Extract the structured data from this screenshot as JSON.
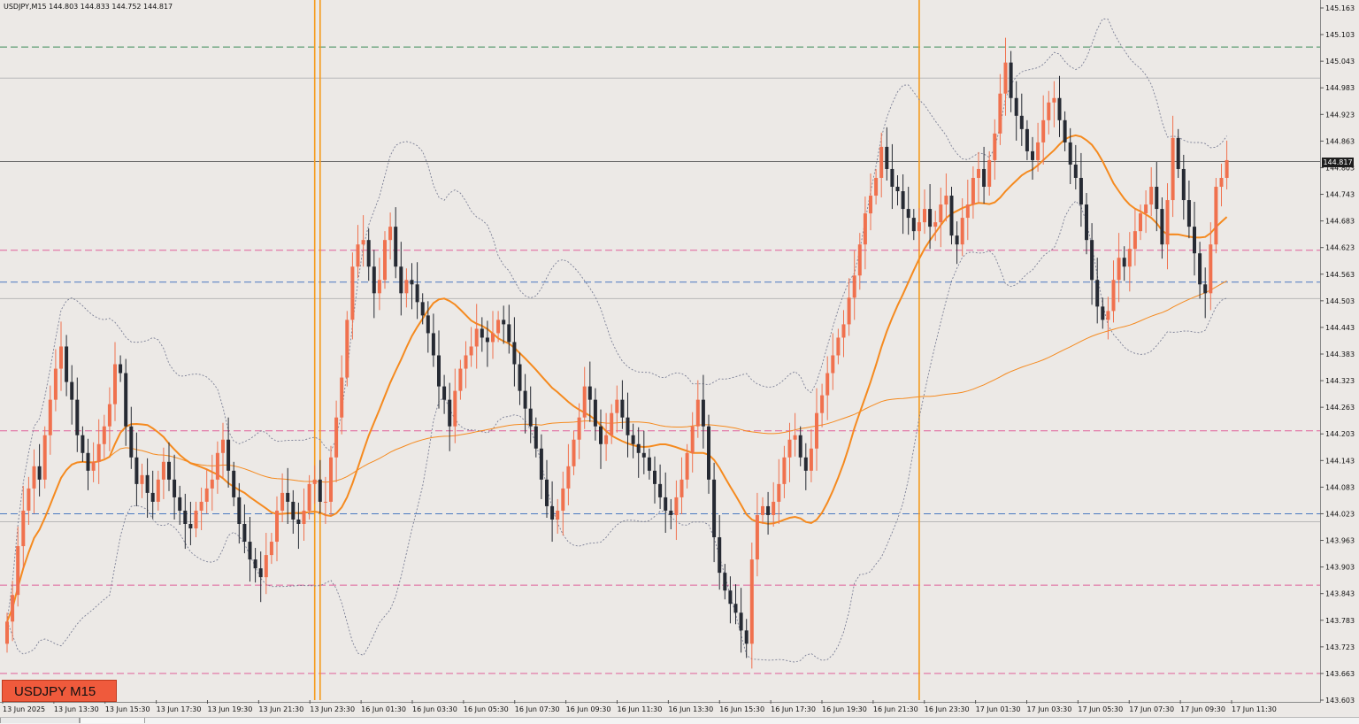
{
  "header": {
    "symbol": "USDJPY,M15",
    "ohlc": "144.803 144.833 144.752 144.817"
  },
  "badge": {
    "label": "USDJPY M15"
  },
  "current_price_label": "144.817",
  "colors": {
    "background": "#ece9e6",
    "bull": "#f0714e",
    "bear": "#262a33",
    "ma_fast": "#f58a1f",
    "ma_slow": "#f58a1f",
    "bands": "#7b7f95",
    "vline": "#f59a1b",
    "level_green": "#3c8a58",
    "level_pink": "#e0609a",
    "level_blue": "#4a79c0",
    "level_grey": "#b8b8b8"
  },
  "chart_data": {
    "type": "candlestick",
    "title": "USDJPY,M15",
    "ylim": [
      143.603,
      145.163
    ],
    "y_ticks": [
      "145.163",
      "145.103",
      "145.043",
      "144.983",
      "144.923",
      "144.863",
      "144.803",
      "144.743",
      "144.683",
      "144.623",
      "144.563",
      "144.503",
      "144.443",
      "144.383",
      "144.323",
      "144.263",
      "144.203",
      "144.143",
      "144.083",
      "144.023",
      "143.963",
      "143.903",
      "143.843",
      "143.783",
      "143.723",
      "143.663",
      "143.603"
    ],
    "x_labels": [
      "13 Jun 2025",
      "13 Jun 13:30",
      "13 Jun 15:30",
      "13 Jun 17:30",
      "13 Jun 19:30",
      "13 Jun 21:30",
      "13 Jun 23:30",
      "16 Jun 01:30",
      "16 Jun 03:30",
      "16 Jun 05:30",
      "16 Jun 07:30",
      "16 Jun 09:30",
      "16 Jun 11:30",
      "16 Jun 13:30",
      "16 Jun 15:30",
      "16 Jun 17:30",
      "16 Jun 19:30",
      "16 Jun 21:30",
      "16 Jun 23:30",
      "17 Jun 01:30",
      "17 Jun 03:30",
      "17 Jun 05:30",
      "17 Jun 07:30",
      "17 Jun 09:30",
      "17 Jun 11:30"
    ],
    "horizontal_levels": [
      {
        "price": 145.075,
        "style": "dashed",
        "color": "green"
      },
      {
        "price": 145.005,
        "style": "solid",
        "color": "grey"
      },
      {
        "price": 144.817,
        "style": "solid",
        "color": "dark"
      },
      {
        "price": 144.617,
        "style": "dashed",
        "color": "pink"
      },
      {
        "price": 144.545,
        "style": "dashed",
        "color": "blue"
      },
      {
        "price": 144.508,
        "style": "solid",
        "color": "grey"
      },
      {
        "price": 144.21,
        "style": "dashed",
        "color": "pink"
      },
      {
        "price": 144.023,
        "style": "dashed",
        "color": "blue"
      },
      {
        "price": 144.005,
        "style": "solid",
        "color": "grey"
      },
      {
        "price": 143.862,
        "style": "dashed",
        "color": "pink"
      },
      {
        "price": 143.663,
        "style": "dashed",
        "color": "pink"
      }
    ],
    "vertical_markers_bar_index": [
      57,
      58,
      169
    ],
    "candles_close": [
      143.78,
      143.84,
      143.95,
      144.03,
      144.08,
      144.13,
      144.1,
      144.2,
      144.28,
      144.35,
      144.4,
      144.32,
      144.28,
      144.2,
      144.16,
      144.12,
      144.14,
      144.18,
      144.22,
      144.27,
      144.36,
      144.34,
      144.22,
      144.15,
      144.09,
      144.11,
      144.07,
      144.05,
      144.1,
      144.14,
      144.1,
      144.06,
      144.03,
      144.0,
      143.99,
      144.03,
      144.05,
      144.08,
      144.1,
      144.16,
      144.19,
      144.12,
      144.06,
      144.0,
      143.96,
      143.92,
      143.9,
      143.88,
      143.93,
      143.96,
      144.03,
      144.07,
      144.05,
      144.01,
      144.0,
      144.03,
      144.09,
      144.1,
      144.05,
      144.05,
      144.15,
      144.24,
      144.33,
      144.46,
      144.58,
      144.63,
      144.64,
      144.58,
      144.52,
      144.55,
      144.64,
      144.67,
      144.58,
      144.52,
      144.55,
      144.54,
      144.5,
      144.47,
      144.43,
      144.38,
      144.31,
      144.28,
      144.22,
      144.3,
      144.35,
      144.38,
      144.4,
      144.44,
      144.42,
      144.41,
      144.43,
      144.46,
      144.45,
      144.41,
      144.36,
      144.3,
      144.26,
      144.22,
      144.17,
      144.1,
      144.04,
      144.01,
      144.03,
      144.08,
      144.13,
      144.19,
      144.24,
      144.31,
      144.28,
      144.22,
      144.18,
      144.2,
      144.25,
      144.28,
      144.24,
      144.2,
      144.18,
      144.16,
      144.15,
      144.12,
      144.09,
      144.06,
      144.03,
      144.02,
      144.06,
      144.1,
      144.16,
      144.22,
      144.28,
      144.22,
      144.1,
      143.97,
      143.89,
      143.85,
      143.82,
      143.8,
      143.76,
      143.73,
      143.92,
      144.02,
      144.04,
      144.02,
      144.05,
      144.09,
      144.15,
      144.19,
      144.2,
      144.15,
      144.12,
      144.17,
      144.25,
      144.29,
      144.34,
      144.38,
      144.42,
      144.45,
      144.51,
      144.56,
      144.63,
      144.7,
      144.74,
      144.78,
      144.85,
      144.8,
      144.76,
      144.75,
      144.71,
      144.69,
      144.66,
      144.68,
      144.71,
      144.67,
      144.68,
      144.72,
      144.74,
      144.65,
      144.63,
      144.69,
      144.72,
      144.78,
      144.8,
      144.76,
      144.82,
      144.88,
      144.97,
      145.04,
      144.96,
      144.92,
      144.89,
      144.84,
      144.82,
      144.86,
      144.91,
      144.95,
      144.96,
      144.91,
      144.86,
      144.81,
      144.78,
      144.72,
      144.64,
      144.55,
      144.49,
      144.46,
      144.48,
      144.55,
      144.6,
      144.58,
      144.62,
      144.66,
      144.7,
      144.72,
      144.76,
      144.71,
      144.63,
      144.73,
      144.87,
      144.8,
      144.73,
      144.67,
      144.61,
      144.54,
      144.52,
      144.63,
      144.76,
      144.78,
      144.82
    ]
  }
}
